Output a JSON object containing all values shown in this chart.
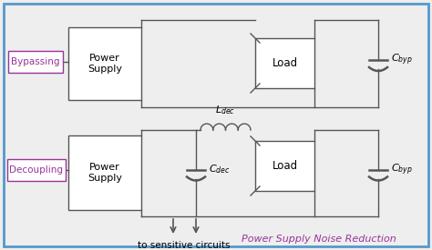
{
  "bg_color": "#eeeeee",
  "border_color": "#5599cc",
  "box_color": "#ffffff",
  "line_color": "#555555",
  "label_bypass_color": "#993399",
  "label_decouple_color": "#993399",
  "footer_color": "#993399",
  "title": "Power Supply Noise Reduction",
  "bypass_label": "Bypassing",
  "decouple_label": "Decoupling",
  "to_sensitive": "to sensitive circuits",
  "C_byp": "$C_{byp}$",
  "C_dec": "$C_{dec}$",
  "L_dec": "$L_{dec}$",
  "figw": 4.74,
  "figh": 2.75,
  "dpi": 100
}
